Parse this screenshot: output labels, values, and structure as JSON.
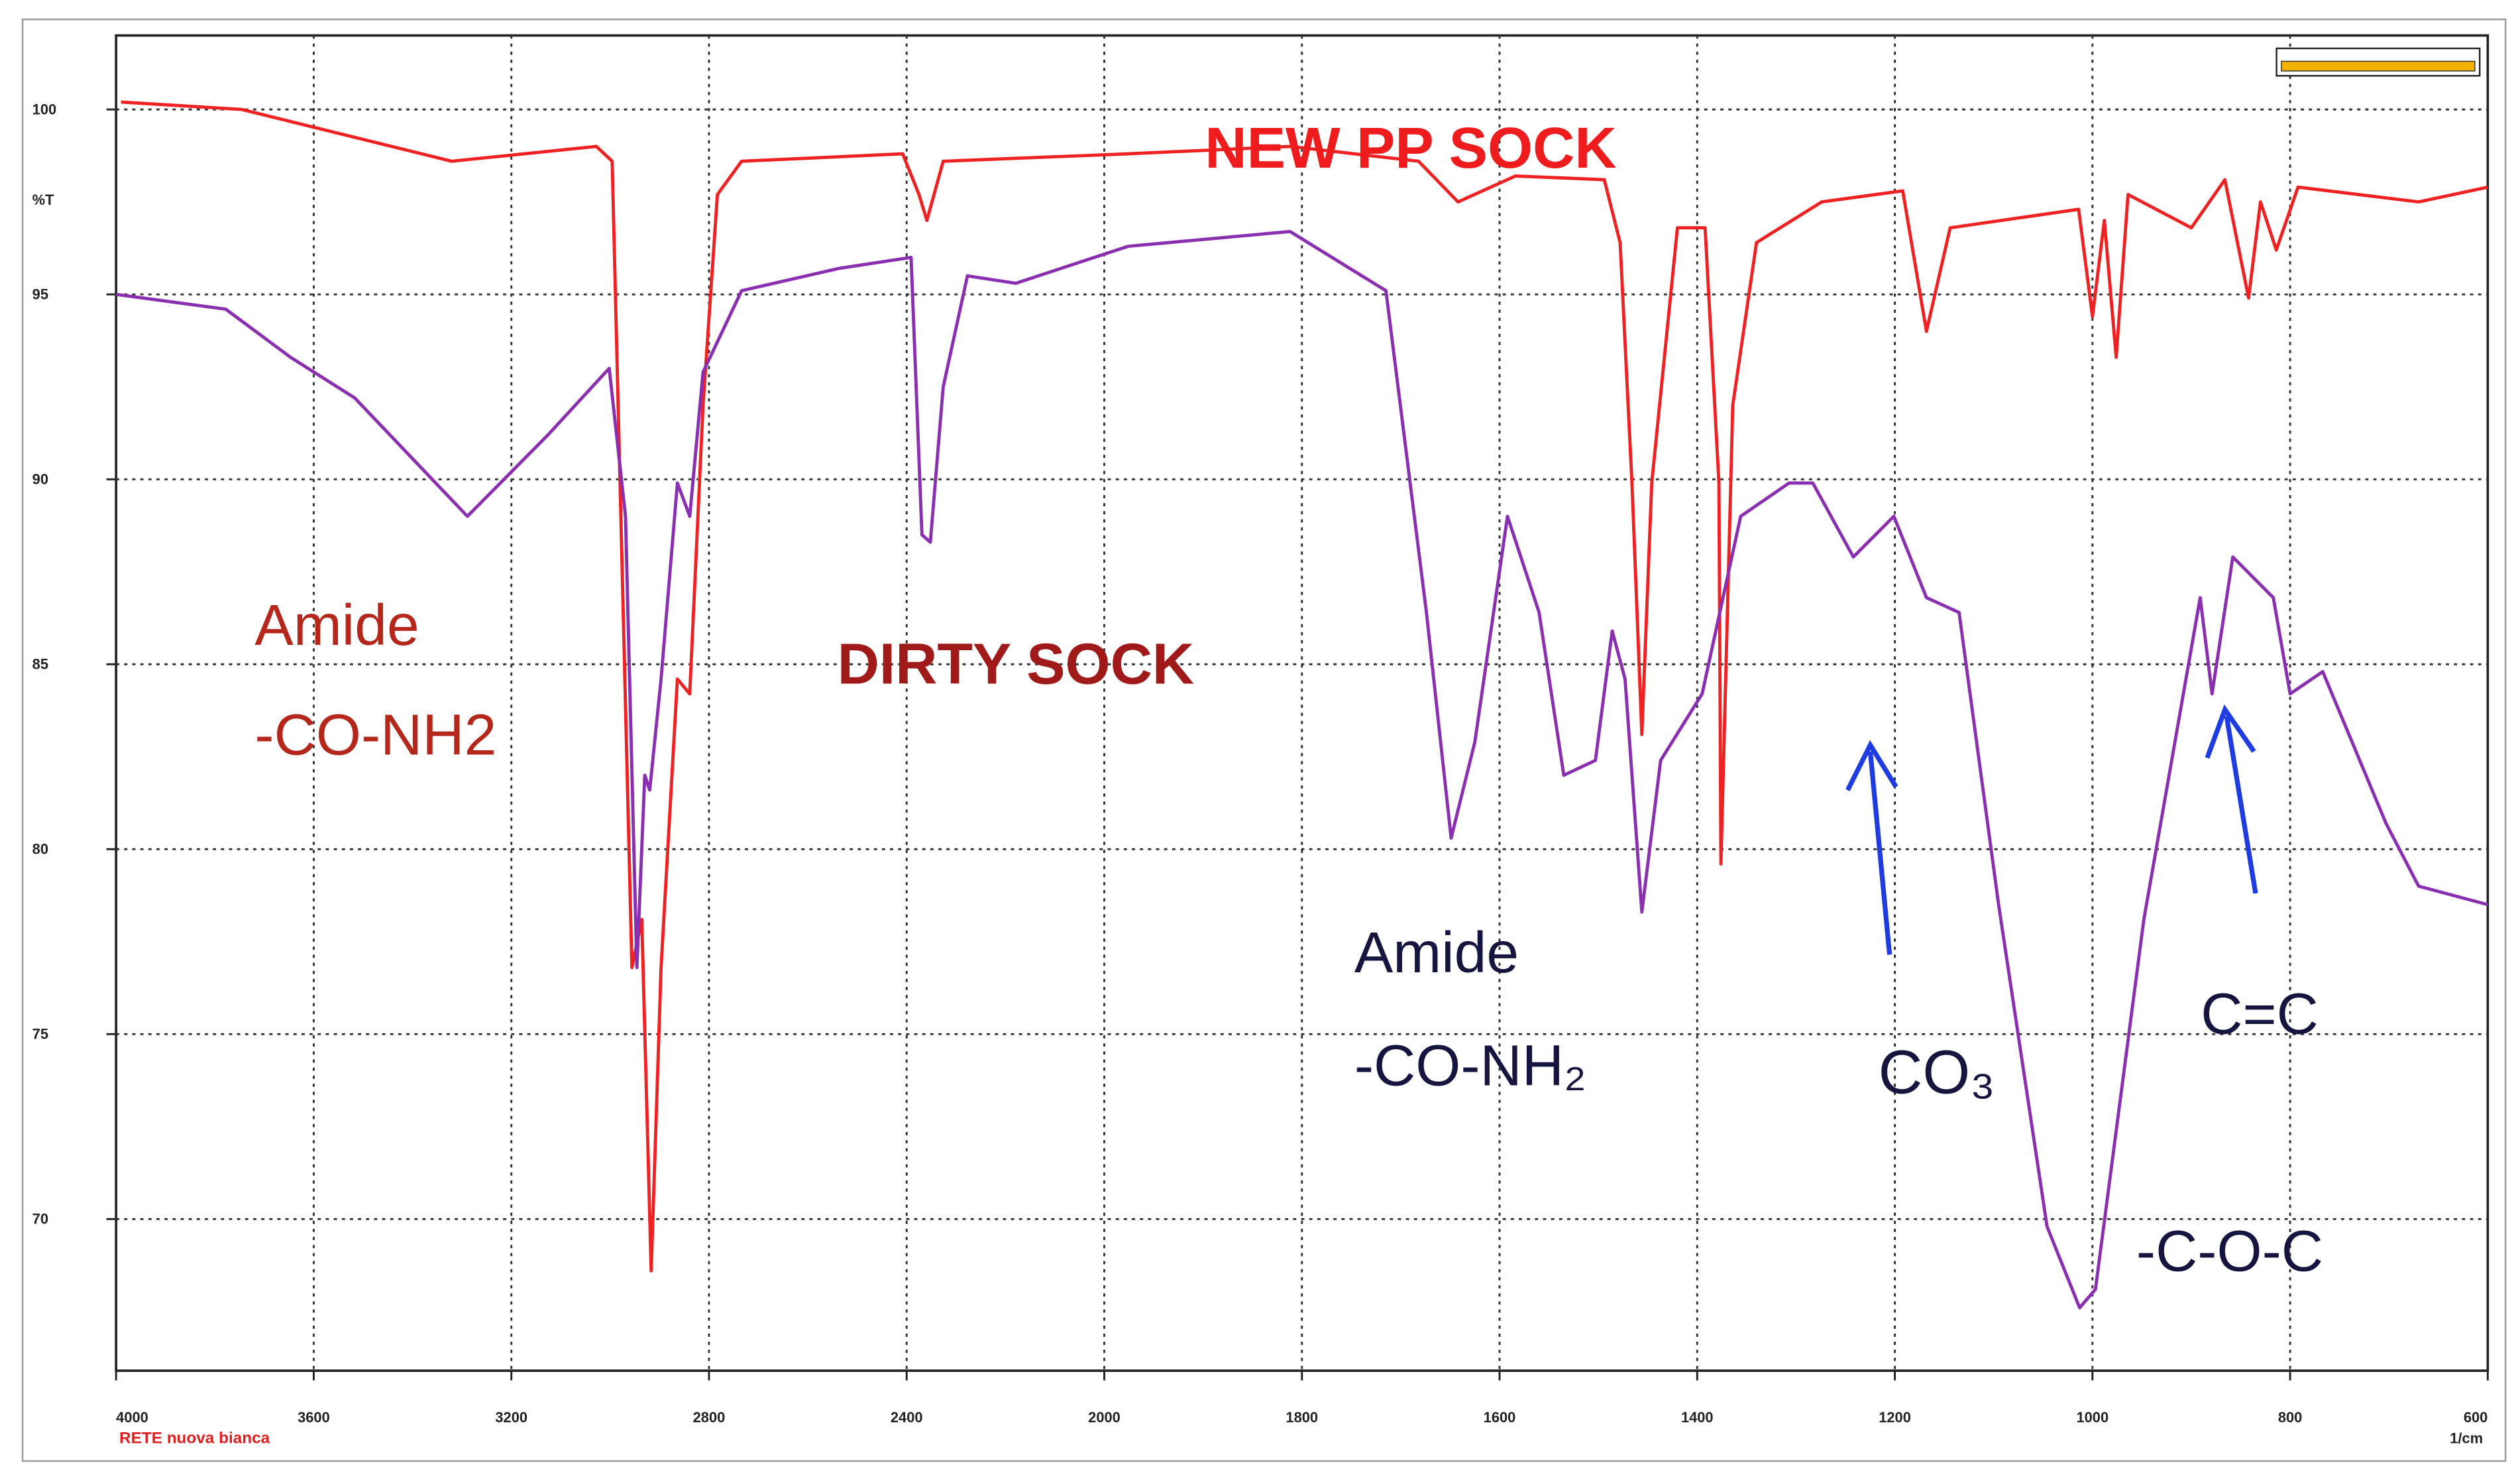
{
  "chart_data": {
    "type": "line",
    "y_label": "%T",
    "x_label": "1/cm",
    "footer": "RETE nuova bianca",
    "xlim": [
      4000,
      600
    ],
    "ylim": [
      65.9,
      102
    ],
    "xticks": [
      4000,
      3600,
      3200,
      2800,
      2400,
      2000,
      1800,
      1600,
      1400,
      1200,
      1000,
      800,
      600
    ],
    "yticks": [
      70,
      75,
      80,
      85,
      90,
      95,
      100
    ],
    "grid": true,
    "series": [
      {
        "name": "NEW PP SOCK",
        "color": "#ee2222",
        "x": [
          3990,
          3746,
          3321,
          3028,
          2996,
          2956,
          2936,
          2917,
          2897,
          2864,
          2839,
          2812,
          2783,
          2734,
          2408,
          2375,
          2359,
          2326,
          1976,
          1812,
          1682,
          1642,
          1584,
          1494,
          1478,
          1466,
          1456,
          1446,
          1420,
          1392,
          1378,
          1376,
          1364,
          1340,
          1274,
          1192,
          1168,
          1144,
          1014,
          1000,
          988,
          976,
          964,
          900,
          866,
          842,
          830,
          814,
          792,
          670,
          600
        ],
        "values": [
          100.2,
          100.0,
          98.6,
          99.0,
          98.6,
          76.8,
          78.1,
          68.6,
          76.8,
          84.6,
          84.2,
          92.0,
          97.7,
          98.6,
          98.8,
          97.7,
          97.0,
          98.6,
          98.8,
          99.0,
          98.6,
          97.5,
          98.2,
          98.1,
          96.4,
          89.9,
          83.1,
          89.9,
          96.8,
          96.8,
          89.9,
          79.6,
          92.0,
          96.4,
          97.5,
          97.8,
          94.0,
          96.8,
          97.3,
          94.4,
          97.0,
          93.3,
          97.7,
          96.8,
          98.1,
          94.9,
          97.5,
          96.2,
          97.9,
          97.5,
          97.9
        ]
      },
      {
        "name": "DIRTY SOCK",
        "color": "#8a2fb0",
        "x": [
          4000,
          3778,
          3647,
          3517,
          3289,
          3126,
          3002,
          2969,
          2946,
          2930,
          2920,
          2897,
          2864,
          2839,
          2812,
          2734,
          2538,
          2391,
          2369,
          2352,
          2326,
          2277,
          2179,
          1976,
          1812,
          1715,
          1674,
          1649,
          1625,
          1592,
          1560,
          1535,
          1503,
          1486,
          1473,
          1456,
          1437,
          1395,
          1356,
          1307,
          1283,
          1242,
          1201,
          1168,
          1135,
          1095,
          1046,
          1013,
          997,
          948,
          891,
          879,
          858,
          817,
          800,
          767,
          703,
          670,
          600
        ],
        "values": [
          95.0,
          94.6,
          93.3,
          92.2,
          89.0,
          91.2,
          93.0,
          89.0,
          76.8,
          82.0,
          81.6,
          84.6,
          89.9,
          89.0,
          92.9,
          95.1,
          95.7,
          96.0,
          88.5,
          88.3,
          92.5,
          95.5,
          95.3,
          96.3,
          96.7,
          95.1,
          86.4,
          80.3,
          82.9,
          89.0,
          86.4,
          82.0,
          82.4,
          85.9,
          84.6,
          78.3,
          82.4,
          84.2,
          89.0,
          89.9,
          89.9,
          87.9,
          89.0,
          86.8,
          86.4,
          78.5,
          69.8,
          67.6,
          68.1,
          78.1,
          86.8,
          84.2,
          87.9,
          86.8,
          84.2,
          84.8,
          80.7,
          79.0,
          78.5
        ]
      }
    ],
    "annotations": [
      {
        "text": "NEW PP SOCK",
        "color": "#ee1c1c"
      },
      {
        "text": "DIRTY SOCK",
        "color": "#a11a1a"
      },
      {
        "text": "Amide",
        "color": "#b5261b"
      },
      {
        "text": "-CO-NH2",
        "color": "#b5261b"
      },
      {
        "text": "Amide",
        "color": "#151540"
      },
      {
        "text": "-CO-NH₂",
        "color": "#151540"
      },
      {
        "text": "CO₃",
        "color": "#151540"
      },
      {
        "text": "C=C",
        "color": "#151540"
      },
      {
        "text": "-C-O-C",
        "color": "#151540"
      }
    ]
  }
}
